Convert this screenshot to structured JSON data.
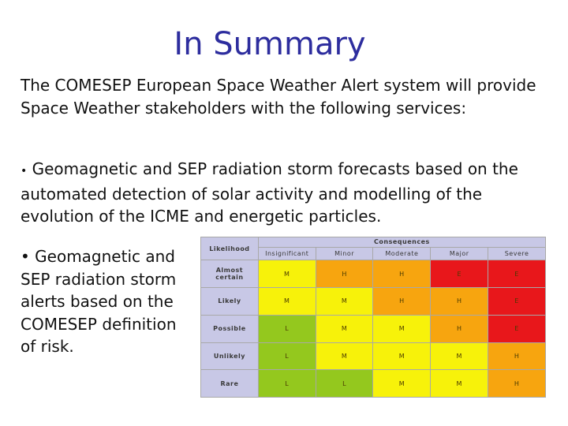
{
  "slide": {
    "title": "In Summary",
    "intro": "The COMESEP European Space Weather Alert system will provide Space Weather stakeholders with the following services:",
    "bullet_glyph": "•",
    "bullet1": "Geomagnetic and SEP radiation storm forecasts based on the automated detection of solar activity and modelling of the evolution of the ICME and energetic particles.",
    "bullet2": "Geomagnetic and SEP radiation storm alerts based on the COMESEP definition of risk."
  },
  "risk_matrix": {
    "consequences_label": "Consequences",
    "likelihood_label": "Likelihood",
    "columns": [
      "Insignificant",
      "Minor",
      "Moderate",
      "Major",
      "Severe"
    ],
    "rows": [
      {
        "label": "Almost certain",
        "cells": [
          "M",
          "H",
          "H",
          "E",
          "E"
        ],
        "colors": [
          "#f7f20a",
          "#f7a50f",
          "#f7a50f",
          "#e8171b",
          "#e8171b"
        ]
      },
      {
        "label": "Likely",
        "cells": [
          "M",
          "M",
          "H",
          "H",
          "E"
        ],
        "colors": [
          "#f7f20a",
          "#f7f20a",
          "#f7a50f",
          "#f7a50f",
          "#e8171b"
        ]
      },
      {
        "label": "Possible",
        "cells": [
          "L",
          "M",
          "M",
          "H",
          "E"
        ],
        "colors": [
          "#94c81e",
          "#f7f20a",
          "#f7f20a",
          "#f7a50f",
          "#e8171b"
        ]
      },
      {
        "label": "Unlikely",
        "cells": [
          "L",
          "M",
          "M",
          "M",
          "H"
        ],
        "colors": [
          "#94c81e",
          "#f7f20a",
          "#f7f20a",
          "#f7f20a",
          "#f7a50f"
        ]
      },
      {
        "label": "Rare",
        "cells": [
          "L",
          "L",
          "M",
          "M",
          "H"
        ],
        "colors": [
          "#94c81e",
          "#94c81e",
          "#f7f20a",
          "#f7f20a",
          "#f7a50f"
        ]
      }
    ]
  }
}
